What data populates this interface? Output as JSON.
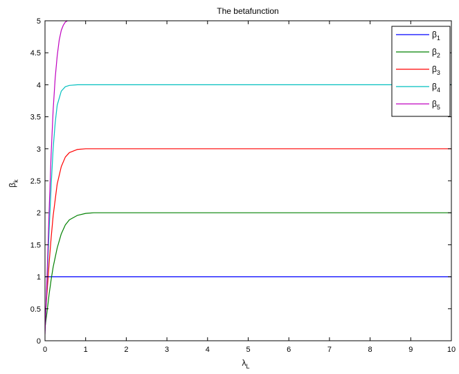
{
  "chart_data": {
    "type": "line",
    "title": "The betafunction",
    "xlabel": "λ",
    "xlabel_sub": "L",
    "ylabel": "β",
    "ylabel_sub": "k",
    "xlim": [
      0,
      10
    ],
    "ylim": [
      0,
      5
    ],
    "xticks": [
      "0",
      "1",
      "2",
      "3",
      "4",
      "5",
      "6",
      "7",
      "8",
      "9",
      "10"
    ],
    "yticks": [
      "0",
      "0.5",
      "1",
      "1.5",
      "2",
      "2.5",
      "3",
      "3.5",
      "4",
      "4.5",
      "5"
    ],
    "grid": false,
    "legend_position": "top-right",
    "series": [
      {
        "name": "β",
        "sub": "1",
        "color": "#0000ff",
        "asymptote": 1,
        "x": [
          0,
          0.05,
          0.1,
          10
        ],
        "y": [
          1,
          1,
          1,
          1
        ]
      },
      {
        "name": "β",
        "sub": "2",
        "color": "#008000",
        "asymptote": 2,
        "x": [
          0,
          0.05,
          0.1,
          0.15,
          0.2,
          0.3,
          0.4,
          0.5,
          0.6,
          0.8,
          1.0,
          1.2,
          1.5,
          10
        ],
        "y": [
          0.2,
          0.45,
          0.72,
          0.95,
          1.15,
          1.45,
          1.67,
          1.81,
          1.89,
          1.96,
          1.99,
          2.0,
          2.0,
          2.0
        ]
      },
      {
        "name": "β",
        "sub": "3",
        "color": "#ff0000",
        "asymptote": 3,
        "x": [
          0,
          0.05,
          0.1,
          0.15,
          0.2,
          0.3,
          0.4,
          0.5,
          0.6,
          0.8,
          1.0,
          1.5,
          10
        ],
        "y": [
          0.3,
          0.75,
          1.2,
          1.6,
          1.95,
          2.45,
          2.72,
          2.87,
          2.94,
          2.99,
          3.0,
          3.0,
          3.0
        ]
      },
      {
        "name": "β",
        "sub": "4",
        "color": "#00bfbf",
        "asymptote": 4,
        "x": [
          0,
          0.05,
          0.1,
          0.15,
          0.2,
          0.25,
          0.3,
          0.4,
          0.5,
          0.6,
          0.8,
          1.0,
          10
        ],
        "y": [
          0.15,
          0.9,
          1.7,
          2.4,
          3.0,
          3.4,
          3.68,
          3.9,
          3.97,
          3.99,
          4.0,
          4.0,
          4.0
        ]
      },
      {
        "name": "β",
        "sub": "5",
        "color": "#bf00bf",
        "asymptote": 5,
        "x": [
          0,
          0.05,
          0.1,
          0.15,
          0.2,
          0.25,
          0.3,
          0.35,
          0.4,
          0.45,
          0.5,
          0.55
        ],
        "y": [
          0.1,
          1.0,
          2.0,
          2.9,
          3.6,
          4.1,
          4.45,
          4.7,
          4.85,
          4.93,
          4.98,
          5.0
        ]
      }
    ]
  }
}
